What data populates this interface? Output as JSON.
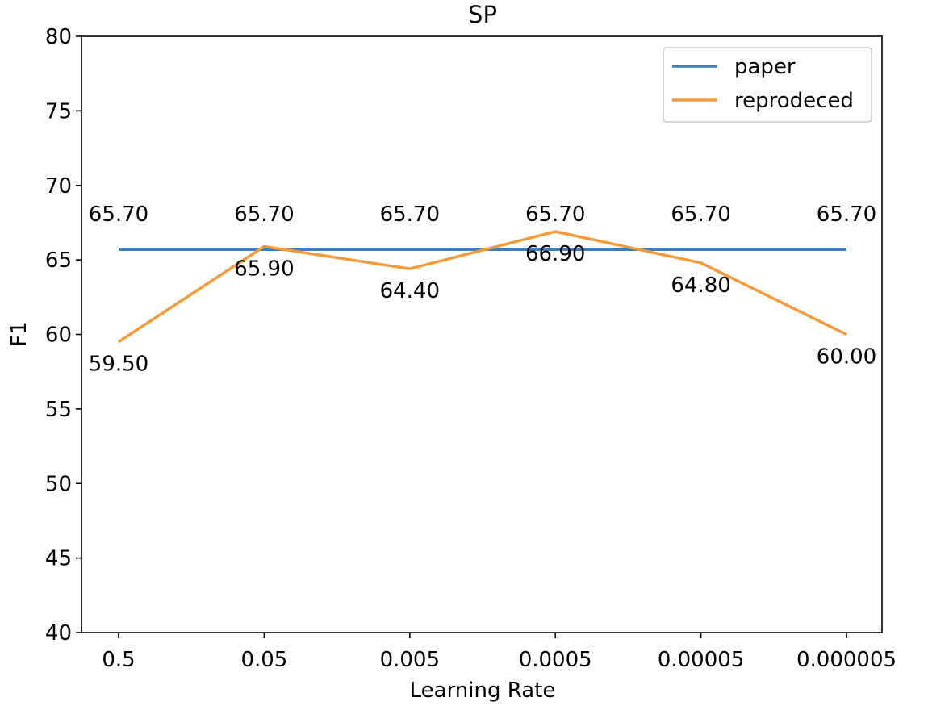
{
  "chart_data": {
    "type": "line",
    "title": "SP",
    "xlabel": "Learning Rate",
    "ylabel": "F1",
    "categories": [
      "0.5",
      "0.05",
      "0.005",
      "0.0005",
      "0.00005",
      "0.000005"
    ],
    "ylim": [
      40,
      80
    ],
    "yticks": [
      40,
      45,
      50,
      55,
      60,
      65,
      70,
      75,
      80
    ],
    "grid": false,
    "legend_position": "upper right",
    "series": [
      {
        "name": "paper",
        "color": "#3a7ebf",
        "values": [
          65.7,
          65.7,
          65.7,
          65.7,
          65.7,
          65.7
        ],
        "labels": [
          "65.70",
          "65.70",
          "65.70",
          "65.70",
          "65.70",
          "65.70"
        ]
      },
      {
        "name": "reprodeced",
        "color": "#f39a3a",
        "values": [
          59.5,
          65.9,
          64.4,
          66.9,
          64.8,
          60.0
        ],
        "labels": [
          "59.50",
          "65.90",
          "64.40",
          "66.90",
          "64.80",
          "60.00"
        ]
      }
    ]
  }
}
